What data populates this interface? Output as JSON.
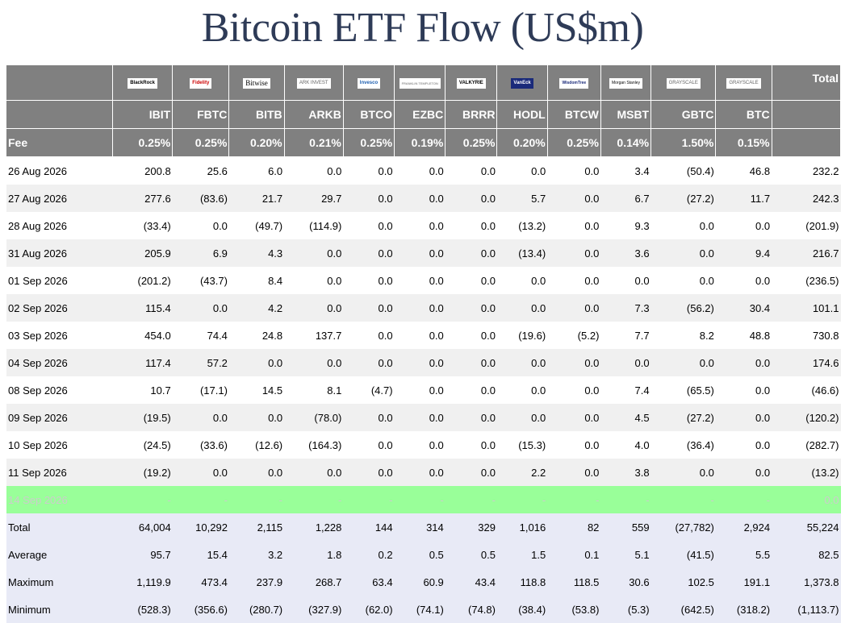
{
  "title": "Bitcoin ETF Flow (US$m)",
  "colors": {
    "header_bg": "#808080",
    "negative": "#e00000",
    "zero": "#c3c3c3",
    "highlight": "#99ff99",
    "stats_bg": "#e8eaf6",
    "title": "#2e3b57"
  },
  "issuers": [
    "BlackRock",
    "Fidelity",
    "Bitwise",
    "ARK INVEST",
    "Invesco",
    "FRANKLIN TEMPLETON",
    "VALKYRIE",
    "VanEck",
    "WisdomTree",
    "Morgan Stanley",
    "GRAYSCALE",
    "GRAYSCALE"
  ],
  "total_header": "Total",
  "tickers": [
    "IBIT",
    "FBTC",
    "BITB",
    "ARKB",
    "BTCO",
    "EZBC",
    "BRRR",
    "HODL",
    "BTCW",
    "MSBT",
    "GBTC",
    "BTC"
  ],
  "fee_label": "Fee",
  "fees": [
    "0.25%",
    "0.25%",
    "0.20%",
    "0.21%",
    "0.25%",
    "0.19%",
    "0.25%",
    "0.20%",
    "0.25%",
    "0.14%",
    "1.50%",
    "0.15%"
  ],
  "rows": [
    {
      "date": "26 Aug 2026",
      "values": [
        "200.8",
        "25.6",
        "6.0",
        "0.0",
        "0.0",
        "0.0",
        "0.0",
        "0.0",
        "0.0",
        "3.4",
        "(50.4)",
        "46.8"
      ],
      "total": "232.2"
    },
    {
      "date": "27 Aug 2026",
      "values": [
        "277.6",
        "(83.6)",
        "21.7",
        "29.7",
        "0.0",
        "0.0",
        "0.0",
        "5.7",
        "0.0",
        "6.7",
        "(27.2)",
        "11.7"
      ],
      "total": "242.3"
    },
    {
      "date": "28 Aug 2026",
      "values": [
        "(33.4)",
        "0.0",
        "(49.7)",
        "(114.9)",
        "0.0",
        "0.0",
        "0.0",
        "(13.2)",
        "0.0",
        "9.3",
        "0.0",
        "0.0"
      ],
      "total": "(201.9)"
    },
    {
      "date": "31 Aug 2026",
      "values": [
        "205.9",
        "6.9",
        "4.3",
        "0.0",
        "0.0",
        "0.0",
        "0.0",
        "(13.4)",
        "0.0",
        "3.6",
        "0.0",
        "9.4"
      ],
      "total": "216.7"
    },
    {
      "date": "01 Sep 2026",
      "values": [
        "(201.2)",
        "(43.7)",
        "8.4",
        "0.0",
        "0.0",
        "0.0",
        "0.0",
        "0.0",
        "0.0",
        "0.0",
        "0.0",
        "0.0"
      ],
      "total": "(236.5)"
    },
    {
      "date": "02 Sep 2026",
      "values": [
        "115.4",
        "0.0",
        "4.2",
        "0.0",
        "0.0",
        "0.0",
        "0.0",
        "0.0",
        "0.0",
        "7.3",
        "(56.2)",
        "30.4"
      ],
      "total": "101.1"
    },
    {
      "date": "03 Sep 2026",
      "values": [
        "454.0",
        "74.4",
        "24.8",
        "137.7",
        "0.0",
        "0.0",
        "0.0",
        "(19.6)",
        "(5.2)",
        "7.7",
        "8.2",
        "48.8"
      ],
      "total": "730.8"
    },
    {
      "date": "04 Sep 2026",
      "values": [
        "117.4",
        "57.2",
        "0.0",
        "0.0",
        "0.0",
        "0.0",
        "0.0",
        "0.0",
        "0.0",
        "0.0",
        "0.0",
        "0.0"
      ],
      "total": "174.6"
    },
    {
      "date": "08 Sep 2026",
      "values": [
        "10.7",
        "(17.1)",
        "14.5",
        "8.1",
        "(4.7)",
        "0.0",
        "0.0",
        "0.0",
        "0.0",
        "7.4",
        "(65.5)",
        "0.0"
      ],
      "total": "(46.6)"
    },
    {
      "date": "09 Sep 2026",
      "values": [
        "(19.5)",
        "0.0",
        "0.0",
        "(78.0)",
        "0.0",
        "0.0",
        "0.0",
        "0.0",
        "0.0",
        "4.5",
        "(27.2)",
        "0.0"
      ],
      "total": "(120.2)"
    },
    {
      "date": "10 Sep 2026",
      "values": [
        "(24.5)",
        "(33.6)",
        "(12.6)",
        "(164.3)",
        "0.0",
        "0.0",
        "0.0",
        "(15.3)",
        "0.0",
        "4.0",
        "(36.4)",
        "0.0"
      ],
      "total": "(282.7)"
    },
    {
      "date": "11 Sep 2026",
      "values": [
        "(19.2)",
        "0.0",
        "0.0",
        "0.0",
        "0.0",
        "0.0",
        "0.0",
        "2.2",
        "0.0",
        "3.8",
        "0.0",
        "0.0"
      ],
      "total": "(13.2)"
    }
  ],
  "pending_row": {
    "date": "14 Sep 2026",
    "values": [
      "-",
      "-",
      "-",
      "-",
      "-",
      "-",
      "-",
      "-",
      "-",
      "-",
      "-",
      "-"
    ],
    "total": "0.0"
  },
  "stats": [
    {
      "label": "Total",
      "values": [
        "64,004",
        "10,292",
        "2,115",
        "1,228",
        "144",
        "314",
        "329",
        "1,016",
        "82",
        "559",
        "(27,782)",
        "2,924"
      ],
      "total": "55,224"
    },
    {
      "label": "Average",
      "values": [
        "95.7",
        "15.4",
        "3.2",
        "1.8",
        "0.2",
        "0.5",
        "0.5",
        "1.5",
        "0.1",
        "5.1",
        "(41.5)",
        "5.5"
      ],
      "total": "82.5"
    },
    {
      "label": "Maximum",
      "values": [
        "1,119.9",
        "473.4",
        "237.9",
        "268.7",
        "63.4",
        "60.9",
        "43.4",
        "118.8",
        "118.5",
        "30.6",
        "102.5",
        "191.1"
      ],
      "total": "1,373.8"
    },
    {
      "label": "Minimum",
      "values": [
        "(528.3)",
        "(356.6)",
        "(280.7)",
        "(327.9)",
        "(62.0)",
        "(74.1)",
        "(74.8)",
        "(38.4)",
        "(53.8)",
        "(5.3)",
        "(642.5)",
        "(318.2)"
      ],
      "total": "(1,113.7)"
    }
  ]
}
